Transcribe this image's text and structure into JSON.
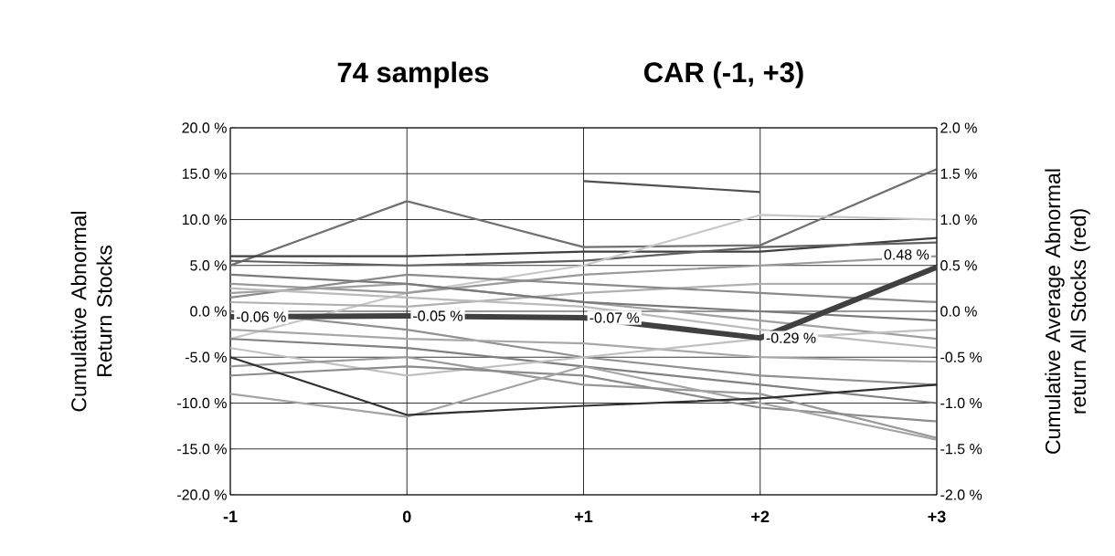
{
  "chart_data": {
    "type": "line",
    "title": "74 samples",
    "subtitle": "CAR (-1, +3)",
    "ylabel": "Cumulative Abnormal Return Stocks",
    "y2label": "Cumulative Average Abnormal return All Stocks (red)",
    "categories": [
      "-1",
      "0",
      "+1",
      "+2",
      "+3"
    ],
    "ylim": [
      -20,
      20
    ],
    "yticks": [
      {
        "value": -20,
        "label": "-20.0 %"
      },
      {
        "value": -15,
        "label": "-15.0 %"
      },
      {
        "value": -10,
        "label": "-10.0 %"
      },
      {
        "value": -5,
        "label": "-5.0 %"
      },
      {
        "value": 0,
        "label": "0.0 %"
      },
      {
        "value": 5,
        "label": "5.0 %"
      },
      {
        "value": 10,
        "label": "10.0 %"
      },
      {
        "value": 15,
        "label": "15.0 %"
      },
      {
        "value": 20,
        "label": "20.0 %"
      }
    ],
    "y2lim": [
      -2,
      2
    ],
    "y2ticks": [
      {
        "value": -2,
        "label": "-2.0 %"
      },
      {
        "value": -1.5,
        "label": "-1.5 %"
      },
      {
        "value": -1,
        "label": "-1.0 %"
      },
      {
        "value": -0.5,
        "label": "-0.5 %"
      },
      {
        "value": 0,
        "label": "0.0 %"
      },
      {
        "value": 0.5,
        "label": "0.5 %"
      },
      {
        "value": 1,
        "label": "1.0 %"
      },
      {
        "value": 1.5,
        "label": "1.5 %"
      },
      {
        "value": 2,
        "label": "2.0 %"
      }
    ],
    "grid": true,
    "series": [
      {
        "color": "#505050",
        "values": [
          null,
          null,
          14.2,
          13.0,
          null
        ]
      },
      {
        "color": "#707070",
        "values": [
          5.0,
          12.0,
          7.0,
          7.2,
          15.5
        ]
      },
      {
        "color": "#404040",
        "values": [
          6.0,
          6.0,
          6.5,
          6.5,
          8.0
        ]
      },
      {
        "color": "#606060",
        "values": [
          5.5,
          5.0,
          5.5,
          7.0,
          7.5
        ]
      },
      {
        "color": "#c8c8c8",
        "values": [
          -3.0,
          2.0,
          5.0,
          10.5,
          10.0
        ]
      },
      {
        "color": "#999999",
        "values": [
          3.0,
          2.0,
          4.0,
          5.0,
          6.0
        ]
      },
      {
        "color": "#b0b0b0",
        "values": [
          1.0,
          0.5,
          2.0,
          3.0,
          3.0
        ]
      },
      {
        "color": "#8a8a8a",
        "values": [
          1.5,
          4.0,
          3.0,
          2.0,
          1.0
        ]
      },
      {
        "color": "#a0a0a0",
        "values": [
          2.0,
          3.0,
          1.0,
          -1.0,
          -3.0
        ]
      },
      {
        "color": "#7a7a7a",
        "values": [
          4.0,
          3.0,
          1.0,
          0.0,
          -1.0
        ]
      },
      {
        "color": "#bbbbbb",
        "values": [
          2.5,
          1.5,
          0.5,
          -2.0,
          -4.0
        ]
      },
      {
        "color": "#909090",
        "values": [
          0.0,
          -2.0,
          -5.0,
          -7.0,
          -8.0
        ]
      },
      {
        "color": "#a8a8a8",
        "values": [
          -2.0,
          -3.0,
          -3.5,
          -5.0,
          -5.5
        ]
      },
      {
        "color": "#808080",
        "values": [
          -3.0,
          -4.0,
          -6.0,
          -8.0,
          -10.0
        ]
      },
      {
        "color": "#c0c0c0",
        "values": [
          -4.0,
          -7.0,
          -5.0,
          -3.0,
          -2.0
        ]
      },
      {
        "color": "#989898",
        "values": [
          -6.0,
          -5.0,
          -8.0,
          -9.0,
          -13.8
        ]
      },
      {
        "color": "#8c8c8c",
        "values": [
          -7.0,
          -6.0,
          -7.0,
          -10.5,
          -12.0
        ]
      },
      {
        "color": "#a4a4a4",
        "values": [
          -9.0,
          -11.5,
          -6.0,
          -10.0,
          -14.0
        ]
      },
      {
        "color": "#303030",
        "values": [
          -5.0,
          -11.3,
          -10.3,
          -9.5,
          -8.0
        ]
      },
      {
        "color": "#404040",
        "axis": "y2",
        "values": [
          -0.06,
          -0.05,
          -0.07,
          -0.29,
          0.48
        ],
        "value_labels": [
          "-0.06 %",
          "-0.05 %",
          "-0.07 %",
          "-0.29 %",
          "0.48 %"
        ]
      }
    ]
  }
}
